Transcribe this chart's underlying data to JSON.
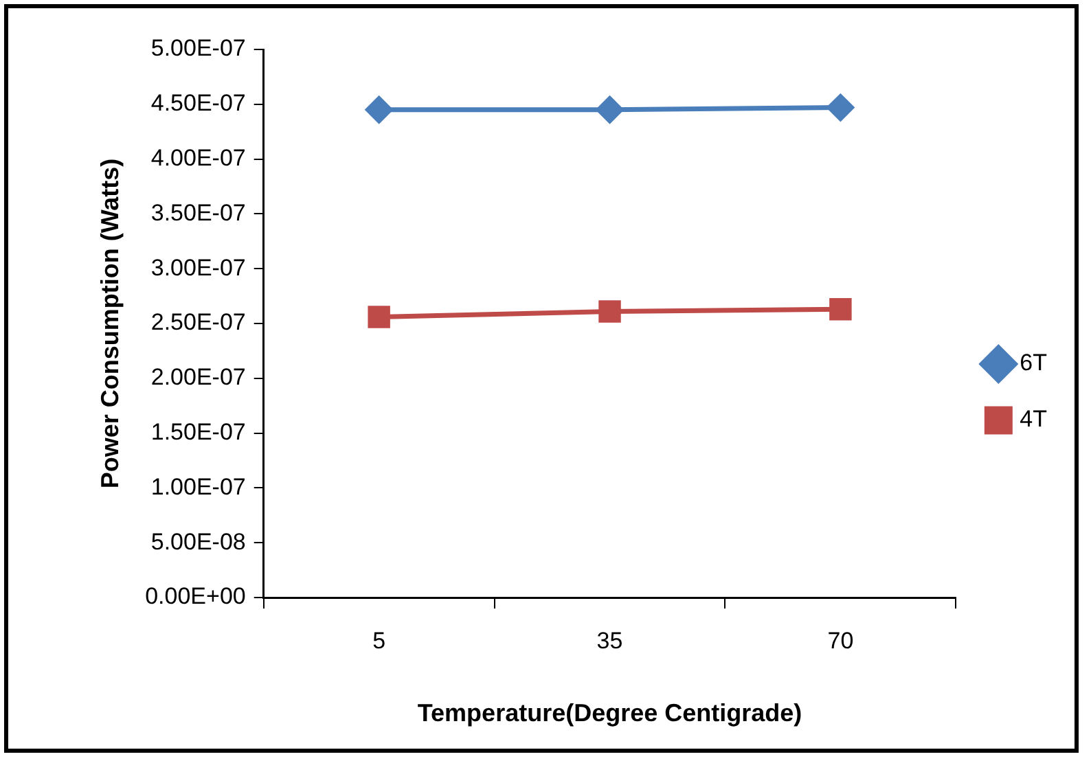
{
  "chart_data": {
    "type": "line",
    "xlabel": "Temperature(Degree Centigrade)",
    "ylabel": "Power Consumption (Watts)",
    "categories": [
      "5",
      "35",
      "70"
    ],
    "series": [
      {
        "name": "6T",
        "color": "#4a7ebb",
        "marker": "diamond",
        "values": [
          4.45e-07,
          4.45e-07,
          4.47e-07
        ]
      },
      {
        "name": "4T",
        "color": "#be4b48",
        "marker": "square",
        "values": [
          2.56e-07,
          2.61e-07,
          2.63e-07
        ]
      }
    ],
    "ylim": [
      0,
      5e-07
    ],
    "yticks": [
      {
        "value": 0,
        "label": "0.00E+00"
      },
      {
        "value": 5e-08,
        "label": "5.00E-08"
      },
      {
        "value": 1e-07,
        "label": "1.00E-07"
      },
      {
        "value": 1.5e-07,
        "label": "1.50E-07"
      },
      {
        "value": 2e-07,
        "label": "2.00E-07"
      },
      {
        "value": 2.5e-07,
        "label": "2.50E-07"
      },
      {
        "value": 3e-07,
        "label": "3.00E-07"
      },
      {
        "value": 3.5e-07,
        "label": "3.50E-07"
      },
      {
        "value": 4e-07,
        "label": "4.00E-07"
      },
      {
        "value": 4.5e-07,
        "label": "4.50E-07"
      },
      {
        "value": 5e-07,
        "label": "5.00E-07"
      }
    ],
    "grid": false,
    "legend": "right",
    "line_style": "solid"
  }
}
